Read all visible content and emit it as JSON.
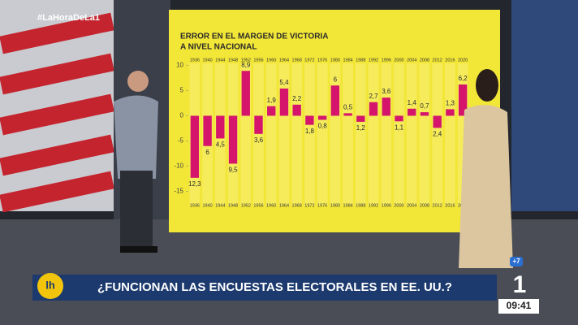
{
  "chart_data": {
    "type": "bar",
    "title": [
      "ERROR EN EL MARGEN DE VICTORIA",
      "A NIVEL NACIONAL"
    ],
    "categories": [
      "1936",
      "1940",
      "1944",
      "1948",
      "1952",
      "1956",
      "1960",
      "1964",
      "1968",
      "1972",
      "1976",
      "1980",
      "1984",
      "1988",
      "1992",
      "1996",
      "2000",
      "2004",
      "2008",
      "2012",
      "2016",
      "2020"
    ],
    "values": [
      -12.3,
      -6,
      -4.5,
      -9.5,
      8.9,
      -3.6,
      1.9,
      5.4,
      2.2,
      -1.8,
      -0.8,
      6,
      0.5,
      -1.2,
      2.7,
      3.6,
      -1.1,
      1.4,
      0.7,
      -2.4,
      1.3,
      6.2
    ],
    "value_labels": [
      "12,3",
      "6",
      "4,5",
      "9,5",
      "8,9",
      "3,6",
      "1,9",
      "5,4",
      "2,2",
      "1,8",
      "0,8",
      "6",
      "0,5",
      "1,2",
      "2,7",
      "3,6",
      "1,1",
      "1,4",
      "0,7",
      "2,4",
      "1,3",
      "6,2"
    ],
    "color": "#d4156b",
    "ylim": [
      -17,
      12
    ],
    "yticks": [
      10,
      5,
      0,
      -5,
      -10,
      -15
    ],
    "grid": false
  },
  "overlay": {
    "hashtag": "#LaHoraDeLa1",
    "headline": "¿FUNCIONAN LAS ENCUESTAS ELECTORALES EN  EE. UU.?",
    "logo": "lh",
    "channel": "1",
    "plus": "+7",
    "clock": "09:41"
  }
}
